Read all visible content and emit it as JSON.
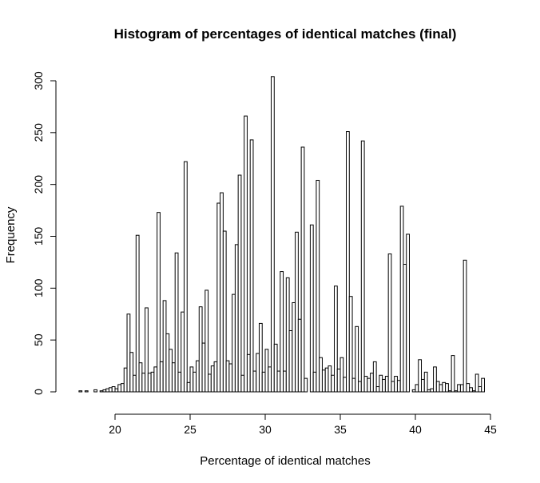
{
  "chart_data": {
    "type": "bar",
    "title": "Histogram of percentages of identical matches (final)",
    "xlabel": "Percentage of identical matches",
    "ylabel": "Frequency",
    "xlim": [
      17.5,
      45
    ],
    "ylim": [
      0,
      300
    ],
    "x_ticks": [
      20,
      25,
      30,
      35,
      40,
      45
    ],
    "y_ticks": [
      0,
      50,
      100,
      150,
      200,
      250,
      300
    ],
    "bin_width": 0.2,
    "bin_start": 17.6,
    "values": [
      1,
      0,
      1,
      0,
      0,
      2,
      0,
      1,
      2,
      3,
      4,
      5,
      3,
      7,
      8,
      23,
      75,
      38,
      16,
      151,
      28,
      18,
      81,
      18,
      19,
      24,
      173,
      29,
      88,
      56,
      41,
      28,
      134,
      19,
      77,
      222,
      9,
      24,
      19,
      30,
      82,
      47,
      98,
      17,
      25,
      29,
      182,
      192,
      155,
      30,
      27,
      94,
      142,
      209,
      16,
      266,
      36,
      243,
      20,
      37,
      66,
      19,
      41,
      24,
      304,
      46,
      20,
      116,
      20,
      110,
      59,
      86,
      154,
      70,
      236,
      13,
      0,
      161,
      19,
      204,
      33,
      21,
      23,
      25,
      16,
      102,
      22,
      33,
      14,
      251,
      92,
      13,
      63,
      10,
      242,
      15,
      13,
      18,
      29,
      5,
      16,
      12,
      15,
      133,
      10,
      15,
      11,
      179,
      123,
      152,
      0,
      2,
      7,
      31,
      12,
      19,
      2,
      3,
      24,
      10,
      7,
      9,
      8,
      1,
      35,
      1,
      7,
      7,
      127,
      8,
      4,
      1,
      17,
      5,
      13
    ]
  }
}
